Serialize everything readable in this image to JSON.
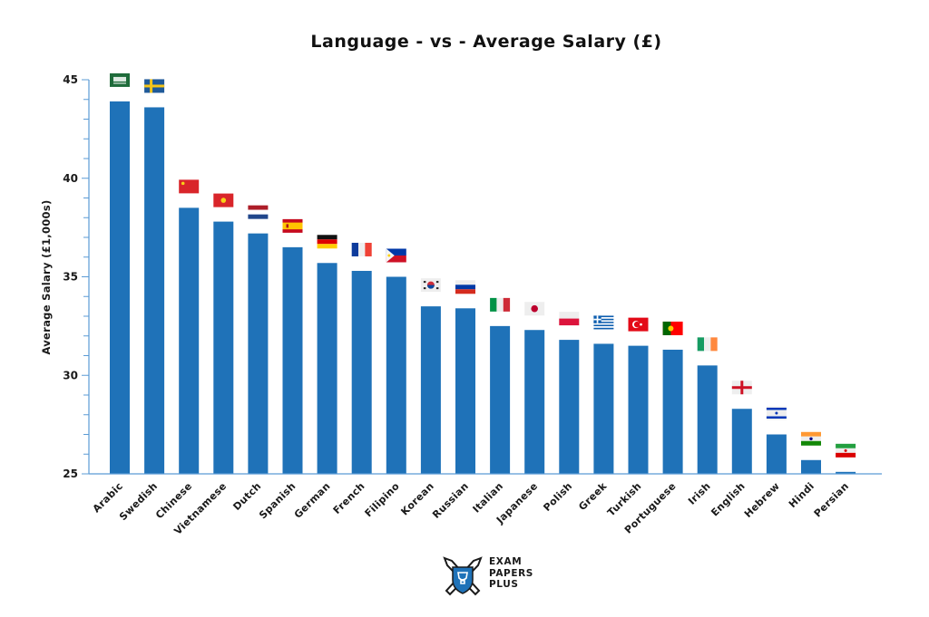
{
  "chart_data": {
    "type": "bar",
    "title": "Language - vs - Average Salary (£)",
    "xlabel": "",
    "ylabel": "Average Salary (£1,000s)",
    "ylim": [
      25,
      45
    ],
    "yticks": [
      25,
      30,
      35,
      40,
      45
    ],
    "ytick_labels": [
      "25",
      "30",
      "35",
      "40",
      "45"
    ],
    "minor_tick_step": 1,
    "grid": false,
    "legend": "none",
    "bar_color": "#1f72b8",
    "axis_color": "#5b9bd5",
    "categories": [
      "Arabic",
      "Swedish",
      "Chinese",
      "Vietnamese",
      "Dutch",
      "Spanish",
      "German",
      "French",
      "Filipino",
      "Korean",
      "Russian",
      "Italian",
      "Japanese",
      "Polish",
      "Greek",
      "Turkish",
      "Portuguese",
      "Irish",
      "English",
      "Hebrew",
      "Hindi",
      "Persian"
    ],
    "values": [
      43.9,
      43.6,
      38.5,
      37.8,
      37.2,
      36.5,
      35.7,
      35.3,
      35.0,
      33.5,
      33.4,
      32.5,
      32.3,
      31.8,
      31.6,
      31.5,
      31.3,
      30.5,
      28.3,
      27.0,
      25.7,
      25.1
    ],
    "flag_icons": [
      "saudi-arabia-flag-icon",
      "sweden-flag-icon",
      "china-flag-icon",
      "vietnam-flag-icon",
      "netherlands-flag-icon",
      "spain-flag-icon",
      "germany-flag-icon",
      "france-flag-icon",
      "philippines-flag-icon",
      "south-korea-flag-icon",
      "russia-flag-icon",
      "italy-flag-icon",
      "japan-flag-icon",
      "poland-flag-icon",
      "greece-flag-icon",
      "turkey-flag-icon",
      "portugal-flag-icon",
      "ireland-flag-icon",
      "england-flag-icon",
      "israel-flag-icon",
      "india-flag-icon",
      "iran-flag-icon"
    ]
  },
  "logo": {
    "icon": "pens-shield-trophy-icon",
    "lines": [
      "EXAM",
      "PAPERS",
      "PLUS"
    ],
    "shield_color": "#1f72b8"
  }
}
